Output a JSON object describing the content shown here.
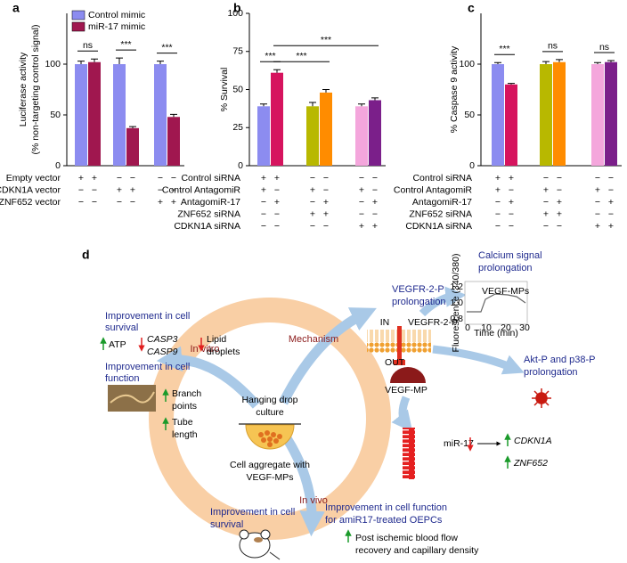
{
  "chart_data": [
    {
      "type": "bar",
      "panel": "a",
      "ylabel": [
        "Luciferase activity",
        "(% non-targeting control signal)"
      ],
      "series": [
        {
          "name": "Control mimic",
          "color": "#8c8cf0",
          "values": [
            100,
            100,
            100
          ],
          "errors": [
            3,
            6,
            3
          ]
        },
        {
          "name": "miR-17 mimic",
          "color": "#a0174f",
          "values": [
            102,
            37,
            48
          ],
          "errors": [
            3,
            1.5,
            2.5
          ]
        }
      ],
      "legend": "upper left",
      "ylim": [
        0,
        150
      ],
      "yticks": [
        0,
        50,
        100
      ],
      "significance": [
        {
          "label": "ns",
          "bars": [
            0,
            1
          ]
        },
        {
          "label": "***",
          "bars": [
            2,
            3
          ]
        },
        {
          "label": "***",
          "bars": [
            4,
            5
          ]
        }
      ],
      "conditions": [
        {
          "label": "Empty vector",
          "marks": [
            "+",
            "+",
            "−",
            "−",
            "−",
            "−"
          ]
        },
        {
          "label": "CDKN1A vector",
          "marks": [
            "−",
            "−",
            "+",
            "+",
            "−",
            "−"
          ]
        },
        {
          "label": "ZNF652 vector",
          "marks": [
            "−",
            "−",
            "−",
            "−",
            "+",
            "+"
          ]
        }
      ]
    },
    {
      "type": "bar",
      "panel": "b",
      "ylabel": [
        "% Survival"
      ],
      "values": [
        39,
        61,
        39,
        48,
        39,
        43
      ],
      "errors": [
        1.5,
        2,
        2.5,
        2,
        1.5,
        1.5
      ],
      "colors": [
        "#8c8cf0",
        "#d6145e",
        "#b8b800",
        "#ff8c00",
        "#f4a6dc",
        "#7b1f8a"
      ],
      "ylim": [
        0,
        100
      ],
      "yticks": [
        0,
        25,
        50,
        75,
        100
      ],
      "significance": [
        {
          "label": "***",
          "bars": [
            0,
            1
          ]
        },
        {
          "label": "***",
          "bars": [
            1,
            3
          ]
        },
        {
          "label": "***",
          "bars": [
            1,
            5
          ]
        }
      ],
      "conditions": [
        {
          "label": "Control siRNA",
          "marks": [
            "+",
            "+",
            "−",
            "−",
            "−",
            "−"
          ]
        },
        {
          "label": "Control AntagomiR",
          "marks": [
            "+",
            "−",
            "+",
            "−",
            "+",
            "−"
          ]
        },
        {
          "label": "AntagomiR-17",
          "marks": [
            "−",
            "+",
            "−",
            "+",
            "−",
            "+"
          ]
        },
        {
          "label": "ZNF652 siRNA",
          "marks": [
            "−",
            "−",
            "+",
            "+",
            "−",
            "−"
          ]
        },
        {
          "label": "CDKN1A siRNA",
          "marks": [
            "−",
            "−",
            "−",
            "−",
            "+",
            "+"
          ]
        }
      ]
    },
    {
      "type": "bar",
      "panel": "c",
      "ylabel": [
        "% Caspase 9 activity"
      ],
      "values": [
        100,
        80,
        100,
        102,
        100,
        102
      ],
      "errors": [
        1.5,
        1,
        2.5,
        2.5,
        1.5,
        1.5
      ],
      "colors": [
        "#8c8cf0",
        "#d6145e",
        "#b8b800",
        "#ff8c00",
        "#f4a6dc",
        "#7b1f8a"
      ],
      "ylim": [
        0,
        150
      ],
      "yticks": [
        0,
        50,
        100
      ],
      "significance": [
        {
          "label": "***",
          "bars": [
            0,
            1
          ]
        },
        {
          "label": "ns",
          "bars": [
            2,
            3
          ]
        },
        {
          "label": "ns",
          "bars": [
            4,
            5
          ]
        }
      ],
      "conditions": [
        {
          "label": "Control siRNA",
          "marks": [
            "+",
            "+",
            "−",
            "−",
            "−",
            "−"
          ]
        },
        {
          "label": "Control AntagomiR",
          "marks": [
            "+",
            "−",
            "+",
            "−",
            "+",
            "−"
          ]
        },
        {
          "label": "AntagomiR-17",
          "marks": [
            "−",
            "+",
            "−",
            "+",
            "−",
            "+"
          ]
        },
        {
          "label": "ZNF652 siRNA",
          "marks": [
            "−",
            "−",
            "+",
            "+",
            "−",
            "−"
          ]
        },
        {
          "label": "CDKN1A siRNA",
          "marks": [
            "−",
            "−",
            "−",
            "−",
            "+",
            "+"
          ]
        }
      ]
    }
  ],
  "diagram": {
    "label": "d",
    "calcium": [
      "Calcium signal",
      "prolongation"
    ],
    "vegfr_title": [
      "VEGFR-2-P",
      "prolongation"
    ],
    "survival_left": [
      "Improvement in cell",
      "survival"
    ],
    "atp": "ATP",
    "casp3": "CASP3",
    "casp9": "CASP9",
    "lipid": [
      "Lipid",
      "droplets"
    ],
    "function_left": [
      "Improvement in cell",
      "function"
    ],
    "branch": [
      "Branch",
      "points"
    ],
    "tube": [
      "Tube",
      "length"
    ],
    "in_vitro": "In vitro",
    "mechanism": "Mechanism",
    "in_vivo": "In vivo",
    "hanging": [
      "Hanging drop",
      "culture"
    ],
    "aggregate": [
      "Cell aggregate with",
      "VEGF-MPs"
    ],
    "in": "IN",
    "receptor": "VEGFR-2-P",
    "out": "OUT",
    "vegf_mp": "VEGF-MP",
    "akt": [
      "Akt-P and p38-P",
      "prolongation"
    ],
    "mir": "miR-17",
    "cdkn1a": "CDKN1A",
    "znf652": "ZNF652",
    "survival_bottom": [
      "Improvement in cell",
      "survival"
    ],
    "function_bottom": [
      "Improvement in cell function",
      "for amiR17-treated OEPCs"
    ],
    "blood": [
      "Post ischemic blood flow",
      "recovery and capillary density"
    ],
    "inset": {
      "tag": "VEGF-MPs",
      "ylabel": "Fluorescence (340/380)",
      "xlabel": "Time (min)",
      "yticks": [
        "1.2",
        "1.0",
        "0.8"
      ],
      "xticks": [
        "0",
        "10",
        "20",
        "30"
      ]
    }
  }
}
